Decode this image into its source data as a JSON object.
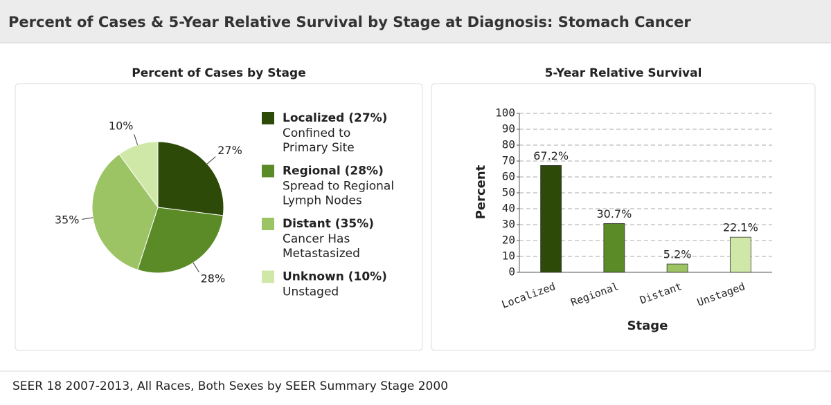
{
  "title": "Percent of Cases & 5-Year Relative Survival by Stage at Diagnosis: Stomach Cancer",
  "footer": "SEER 18 2007-2013, All Races, Both Sexes by SEER Summary Stage 2000",
  "chart_data": [
    {
      "type": "pie",
      "title": "Percent of Cases by Stage",
      "categories": [
        "Localized",
        "Regional",
        "Distant",
        "Unknown"
      ],
      "values": [
        27,
        28,
        35,
        10
      ],
      "value_labels": [
        "27%",
        "28%",
        "35%",
        "10%"
      ],
      "colors": [
        "#2e4a08",
        "#5b8b26",
        "#9cc465",
        "#cfe8a8"
      ],
      "legend": [
        {
          "label": "Localized (27%)",
          "description": [
            "Confined to",
            "Primary Site"
          ]
        },
        {
          "label": "Regional (28%)",
          "description": [
            "Spread to Regional",
            "Lymph Nodes"
          ]
        },
        {
          "label": "Distant (35%)",
          "description": [
            "Cancer Has",
            "Metastasized"
          ]
        },
        {
          "label": "Unknown (10%)",
          "description": [
            "Unstaged"
          ]
        }
      ]
    },
    {
      "type": "bar",
      "title": "5-Year Relative Survival",
      "categories": [
        "Localized",
        "Regional",
        "Distant",
        "Unstaged"
      ],
      "values": [
        67.2,
        30.7,
        5.2,
        22.1
      ],
      "value_labels": [
        "67.2%",
        "30.7%",
        "5.2%",
        "22.1%"
      ],
      "colors": [
        "#2e4a08",
        "#5b8b26",
        "#9cc465",
        "#cfe8a8"
      ],
      "xlabel": "Stage",
      "ylabel": "Percent",
      "ylim": [
        0,
        100
      ],
      "yticks": [
        0,
        10,
        20,
        30,
        40,
        50,
        60,
        70,
        80,
        90,
        100
      ],
      "grid": true
    }
  ]
}
